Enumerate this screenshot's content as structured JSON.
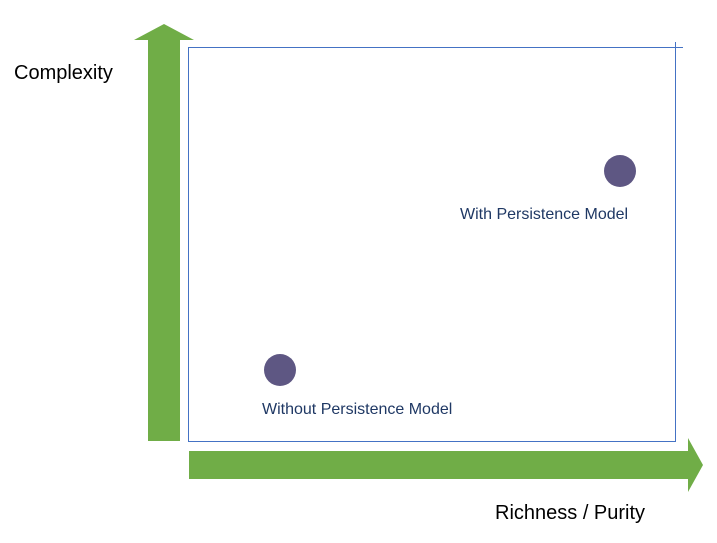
{
  "axes": {
    "y_label": "Complexity",
    "x_label": "Richness / Purity"
  },
  "points": [
    {
      "label": "With Persistence Model"
    },
    {
      "label": "Without Persistence Model"
    }
  ],
  "colors": {
    "arrow": "#70ad47",
    "frame": "#4472c4",
    "marker": "#5e5783",
    "point_label": "#1f3864"
  }
}
